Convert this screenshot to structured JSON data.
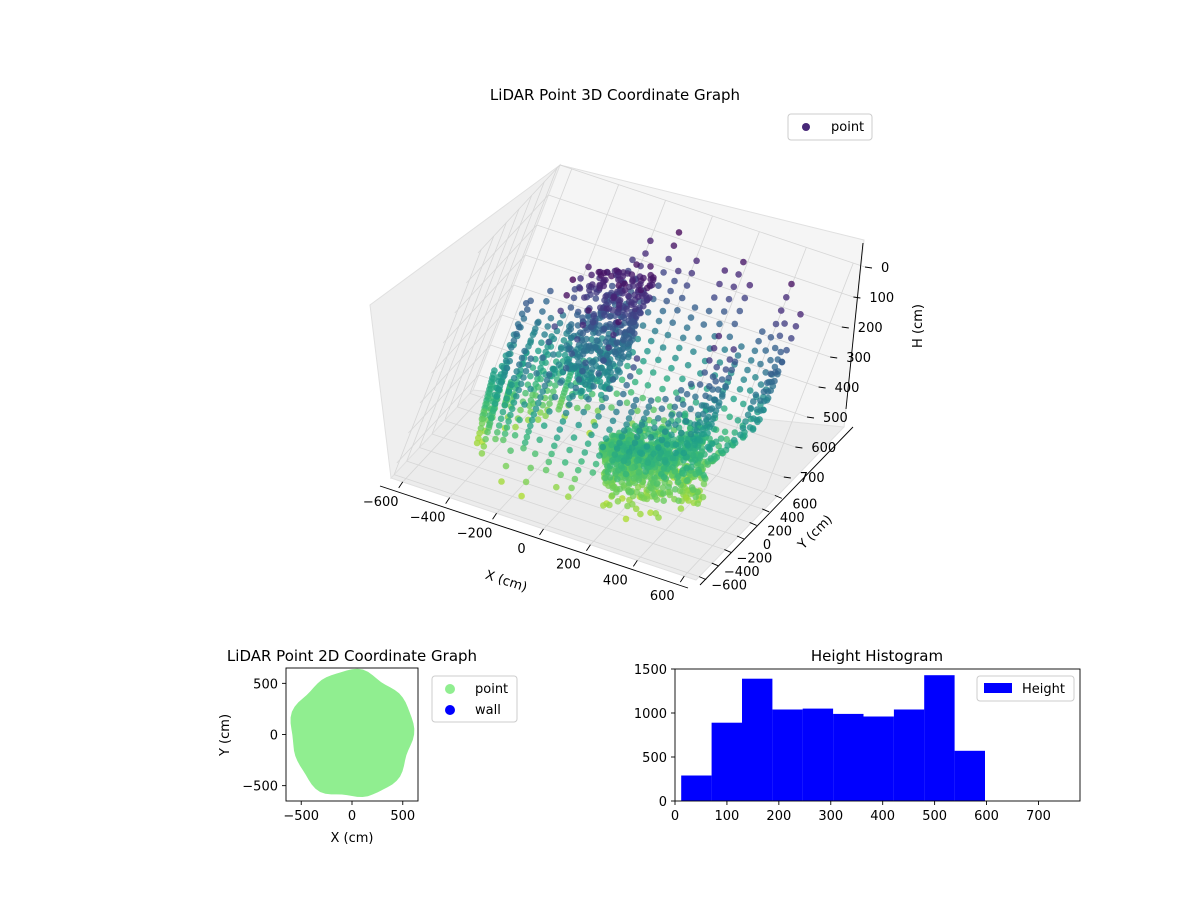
{
  "figure": {
    "background": "#ffffff"
  },
  "chart_data": [
    {
      "type": "scatter",
      "projection": "3d",
      "title": "LiDAR Point 3D Coordinate Graph",
      "xlabel": "X (cm)",
      "ylabel": "Y (cm)",
      "zlabel": "H (cm)",
      "xlim": [
        -650,
        650
      ],
      "ylim": [
        -650,
        650
      ],
      "zlim": [
        0,
        750
      ],
      "z_inverted": true,
      "xticks": [
        -600,
        -400,
        -200,
        0,
        200,
        400,
        600
      ],
      "yticks": [
        -600,
        -400,
        -200,
        0,
        200,
        400,
        600
      ],
      "zticks": [
        0,
        100,
        200,
        300,
        400,
        500,
        600,
        700
      ],
      "xtick_labels": [
        "−600",
        "−400",
        "−200",
        "0",
        "200",
        "400",
        "600"
      ],
      "ytick_labels": [
        "−600",
        "−400",
        "−200",
        "0",
        "200",
        "400",
        "600"
      ],
      "ztick_labels": [
        "0",
        "100",
        "200",
        "300",
        "400",
        "500",
        "600",
        "700"
      ],
      "grid": true,
      "colormap": "viridis",
      "legend": {
        "entries": [
          "point"
        ],
        "position": "top-right",
        "marker_color": "#482878"
      },
      "series": [
        {
          "name": "point",
          "shape": "ring of vertical scan columns (radius about 450-600 cm) with a dense region dipping toward the floor near the center",
          "x_range": [
            -600,
            600
          ],
          "y_range": [
            -600,
            600
          ],
          "z_range": [
            0,
            700
          ]
        }
      ]
    },
    {
      "type": "scatter",
      "title": "LiDAR Point 2D Coordinate Graph",
      "xlabel": "X (cm)",
      "ylabel": "Y (cm)",
      "xlim": [
        -650,
        650
      ],
      "ylim": [
        -650,
        650
      ],
      "xticks": [
        -500,
        0,
        500
      ],
      "yticks": [
        -500,
        0,
        500
      ],
      "xtick_labels": [
        "−500",
        "0",
        "500"
      ],
      "ytick_labels": [
        "−500",
        "0",
        "500"
      ],
      "grid": false,
      "legend": {
        "entries": [
          "point",
          "wall"
        ],
        "position": "outside-right"
      },
      "series": [
        {
          "name": "point",
          "color": "#90ee90",
          "shape": "filled disc of points",
          "center": [
            0,
            0
          ],
          "x_range": [
            -600,
            600
          ],
          "y_range": [
            -620,
            620
          ]
        },
        {
          "name": "wall",
          "color": "#0000ff",
          "points": []
        }
      ]
    },
    {
      "type": "bar",
      "subtype": "histogram",
      "title": "Height Histogram",
      "xlabel": "",
      "ylabel": "",
      "xlim": [
        0,
        780
      ],
      "ylim": [
        0,
        1500
      ],
      "xticks": [
        0,
        100,
        200,
        300,
        400,
        500,
        600,
        700
      ],
      "yticks": [
        0,
        500,
        1000,
        1500
      ],
      "bin_edges": [
        12,
        70.5,
        129,
        187.5,
        246,
        304.5,
        363,
        421.5,
        480,
        538.5,
        597
      ],
      "values": [
        290,
        890,
        1390,
        1040,
        1050,
        990,
        960,
        1040,
        1430,
        570
      ],
      "color": "#0000ff",
      "grid": false,
      "legend": {
        "entries": [
          "Height"
        ],
        "position": "top-right"
      },
      "series": [
        {
          "name": "Height",
          "values": [
            290,
            890,
            1390,
            1040,
            1050,
            990,
            960,
            1040,
            1430,
            570
          ]
        }
      ]
    }
  ]
}
